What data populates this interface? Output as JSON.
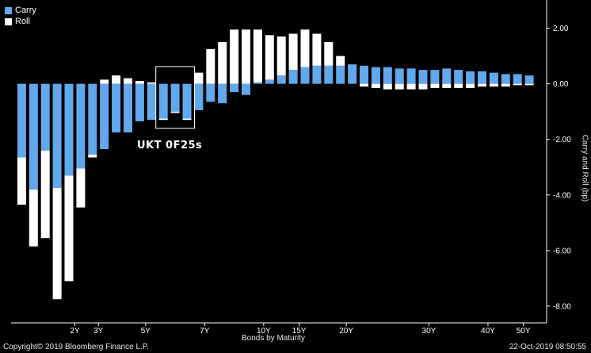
{
  "colors": {
    "carry": "#62a8ec",
    "roll": "#ffffff",
    "background": "#000000",
    "axis": "#ffffff"
  },
  "legend": {
    "carry": "Carry",
    "roll": "Roll"
  },
  "annotation": "UKT 0F25s",
  "footer": {
    "copyright": "Copyright© 2019 Bloomberg Finance L.P.",
    "timestamp": "22-Oct-2019 08:50:55"
  },
  "chart_data": {
    "type": "bar",
    "stacked": true,
    "xlabel": "Bonds by Maturity",
    "ylabel": "Carry and Roll (bp)",
    "ylim": [
      -8.6,
      2.9
    ],
    "yticks": [
      "2.00",
      "0.00",
      "-2.00",
      "-4.00",
      "-6.00",
      "-8.00"
    ],
    "ytick_values": [
      2,
      0,
      -2,
      -4,
      -6,
      -8
    ],
    "x_ticks": [
      {
        "label": "2Y",
        "index": 4.5
      },
      {
        "label": "3Y",
        "index": 6.5
      },
      {
        "label": "5Y",
        "index": 10.5
      },
      {
        "label": "7Y",
        "index": 15.5
      },
      {
        "label": "10Y",
        "index": 20.5
      },
      {
        "label": "15Y",
        "index": 23.5
      },
      {
        "label": "20Y",
        "index": 27.5
      },
      {
        "label": "30Y",
        "index": 34.5
      },
      {
        "label": "40Y",
        "index": 39.5
      },
      {
        "label": "50Y",
        "index": 42.5
      }
    ],
    "bar_count": 44,
    "highlight_bars": [
      12,
      13,
      14
    ],
    "series": [
      {
        "name": "Carry",
        "values": [
          -2.65,
          -3.8,
          -2.4,
          -3.75,
          -3.3,
          -3.05,
          -2.55,
          -2.35,
          -1.75,
          -1.75,
          -1.35,
          -1.3,
          -1.25,
          -1.0,
          -1.25,
          -0.95,
          -0.65,
          -0.7,
          -0.3,
          -0.4,
          0.05,
          0.15,
          0.3,
          0.5,
          0.6,
          0.65,
          0.65,
          0.65,
          0.7,
          0.65,
          0.6,
          0.6,
          0.55,
          0.55,
          0.5,
          0.5,
          0.55,
          0.5,
          0.45,
          0.45,
          0.4,
          0.35,
          0.35,
          0.3
        ]
      },
      {
        "name": "Roll",
        "values": [
          -1.7,
          -2.05,
          -3.15,
          -4.0,
          -3.8,
          -1.4,
          -0.1,
          0.15,
          0.3,
          0.2,
          0.1,
          0.05,
          -0.05,
          -0.05,
          -0.05,
          0.4,
          1.25,
          1.5,
          1.95,
          1.95,
          1.9,
          1.6,
          1.4,
          1.3,
          1.35,
          1.15,
          0.85,
          0.35,
          0.0,
          -0.1,
          -0.15,
          -0.2,
          -0.2,
          -0.2,
          -0.2,
          -0.15,
          -0.15,
          -0.15,
          -0.15,
          -0.1,
          -0.1,
          -0.1,
          -0.05,
          -0.05
        ]
      }
    ]
  }
}
